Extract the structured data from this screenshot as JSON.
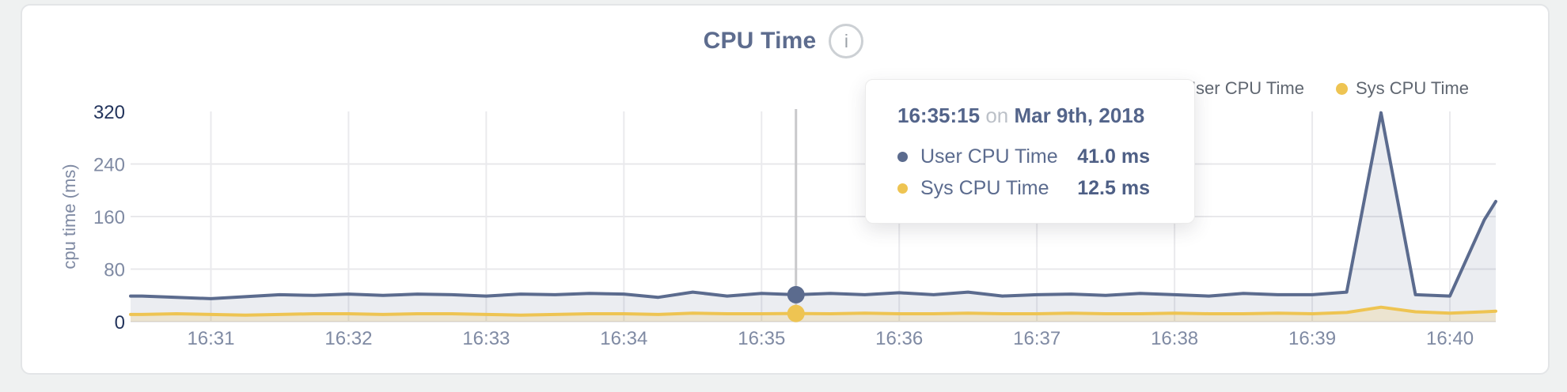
{
  "page": {
    "title": "CPU Time",
    "info_icon_glyph": "i"
  },
  "chart_data": {
    "type": "area",
    "title": "CPU Time",
    "ylabel": "cpu time (ms)",
    "ylim": [
      0,
      320
    ],
    "grid": true,
    "legend_position": "top-right",
    "y_ticks": [
      {
        "v": 0,
        "label": "0",
        "strong": true
      },
      {
        "v": 80,
        "label": "80",
        "strong": false
      },
      {
        "v": 160,
        "label": "160",
        "strong": false
      },
      {
        "v": 240,
        "label": "240",
        "strong": false
      },
      {
        "v": 320,
        "label": "320",
        "strong": true
      }
    ],
    "x_ticks": [
      {
        "t": 60,
        "label": "16:31"
      },
      {
        "t": 120,
        "label": "16:32"
      },
      {
        "t": 180,
        "label": "16:33"
      },
      {
        "t": 240,
        "label": "16:34"
      },
      {
        "t": 300,
        "label": "16:35"
      },
      {
        "t": 360,
        "label": "16:36"
      },
      {
        "t": 420,
        "label": "16:37"
      },
      {
        "t": 480,
        "label": "16:38"
      },
      {
        "t": 540,
        "label": "16:39"
      },
      {
        "t": 600,
        "label": "16:40"
      }
    ],
    "series": [
      {
        "name": "User CPU Time",
        "color": "#5b6b8e",
        "fill": "rgba(91,107,142,0.12)",
        "points": [
          [
            25,
            39
          ],
          [
            30,
            39
          ],
          [
            45,
            37
          ],
          [
            60,
            35
          ],
          [
            75,
            38
          ],
          [
            90,
            41
          ],
          [
            105,
            40
          ],
          [
            120,
            42
          ],
          [
            135,
            40
          ],
          [
            150,
            42
          ],
          [
            165,
            41
          ],
          [
            180,
            39
          ],
          [
            195,
            42
          ],
          [
            210,
            41
          ],
          [
            225,
            43
          ],
          [
            240,
            42
          ],
          [
            255,
            37
          ],
          [
            270,
            45
          ],
          [
            285,
            39
          ],
          [
            300,
            43
          ],
          [
            315,
            41
          ],
          [
            330,
            43
          ],
          [
            345,
            41
          ],
          [
            360,
            44
          ],
          [
            375,
            41
          ],
          [
            390,
            45
          ],
          [
            405,
            39
          ],
          [
            420,
            41
          ],
          [
            435,
            42
          ],
          [
            450,
            40
          ],
          [
            465,
            43
          ],
          [
            480,
            41
          ],
          [
            495,
            39
          ],
          [
            510,
            43
          ],
          [
            525,
            41
          ],
          [
            540,
            41
          ],
          [
            555,
            45
          ],
          [
            570,
            318
          ],
          [
            585,
            41
          ],
          [
            600,
            39
          ],
          [
            615,
            155
          ],
          [
            620,
            183
          ]
        ]
      },
      {
        "name": "Sys CPU Time",
        "color": "#eec452",
        "fill": "rgba(238,196,82,0.20)",
        "points": [
          [
            25,
            11
          ],
          [
            30,
            11
          ],
          [
            45,
            12
          ],
          [
            60,
            11
          ],
          [
            75,
            10
          ],
          [
            90,
            11
          ],
          [
            105,
            12
          ],
          [
            120,
            12
          ],
          [
            135,
            11
          ],
          [
            150,
            12
          ],
          [
            165,
            12
          ],
          [
            180,
            11
          ],
          [
            195,
            10
          ],
          [
            210,
            11
          ],
          [
            225,
            12
          ],
          [
            240,
            12
          ],
          [
            255,
            11
          ],
          [
            270,
            13
          ],
          [
            285,
            12
          ],
          [
            300,
            12
          ],
          [
            315,
            12.5
          ],
          [
            330,
            12
          ],
          [
            345,
            13
          ],
          [
            360,
            12
          ],
          [
            375,
            12
          ],
          [
            390,
            13
          ],
          [
            405,
            12
          ],
          [
            420,
            12
          ],
          [
            435,
            13
          ],
          [
            450,
            12
          ],
          [
            465,
            12
          ],
          [
            480,
            13
          ],
          [
            495,
            12
          ],
          [
            510,
            12
          ],
          [
            525,
            13
          ],
          [
            540,
            12
          ],
          [
            555,
            14
          ],
          [
            570,
            22
          ],
          [
            585,
            15
          ],
          [
            600,
            13
          ],
          [
            615,
            15
          ],
          [
            620,
            16
          ]
        ]
      }
    ],
    "hover": {
      "t": 315,
      "time": "16:35:15",
      "conjunction": "on",
      "date": "Mar 9th, 2018",
      "rows": [
        {
          "name": "User CPU Time",
          "value": "41.0 ms",
          "series_index": 0
        },
        {
          "name": "Sys CPU Time",
          "value": "12.5 ms",
          "series_index": 1
        }
      ]
    }
  }
}
